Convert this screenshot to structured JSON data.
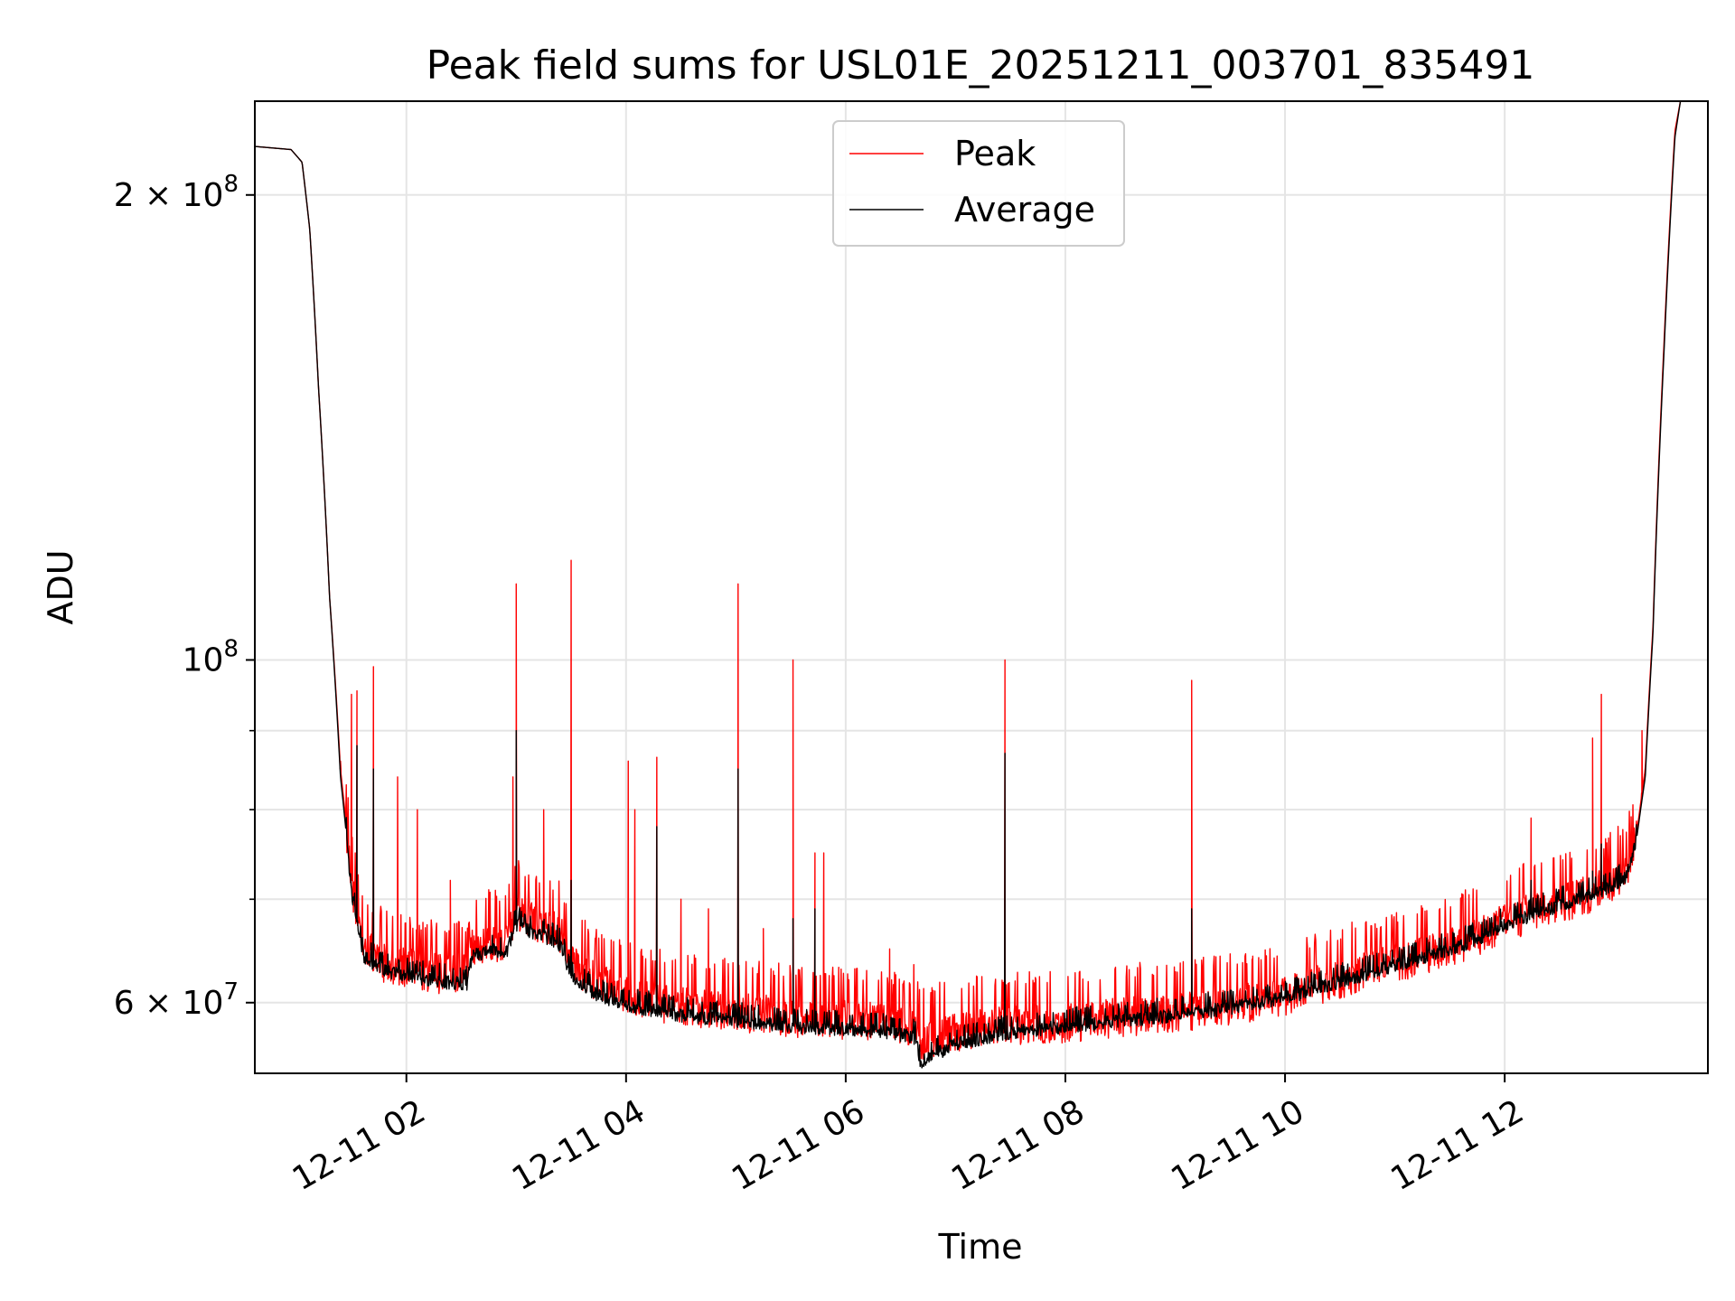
{
  "chart_data": {
    "type": "line",
    "title": "Peak field sums for USL01E_20251211_003701_835491",
    "xlabel": "Time",
    "ylabel": "ADU",
    "yscale": "log",
    "grid": true,
    "legend_position": "top-center",
    "xlim_hours": [
      0.62,
      13.85
    ],
    "ylim": [
      54000000,
      230000000
    ],
    "x_ticks": [
      {
        "hour": 2,
        "label": "12-11 02"
      },
      {
        "hour": 4,
        "label": "12-11 04"
      },
      {
        "hour": 6,
        "label": "12-11 06"
      },
      {
        "hour": 8,
        "label": "12-11 08"
      },
      {
        "hour": 10,
        "label": "12-11 10"
      },
      {
        "hour": 12,
        "label": "12-11 12"
      }
    ],
    "y_ticks": [
      {
        "value": 60000000,
        "base": "6 × 10",
        "exp": "7"
      },
      {
        "value": 100000000,
        "base": "10",
        "exp": "8"
      },
      {
        "value": 200000000,
        "base": "2 × 10",
        "exp": "8"
      }
    ],
    "y_minor_ticks": [
      70000000,
      80000000,
      90000000
    ],
    "series": [
      {
        "name": "Peak",
        "color": "#ff0000",
        "baseline": [
          [
            0.62,
            215000000
          ],
          [
            0.95,
            214000000
          ],
          [
            1.05,
            210000000
          ],
          [
            1.12,
            190000000
          ],
          [
            1.2,
            150000000
          ],
          [
            1.3,
            110000000
          ],
          [
            1.4,
            85000000
          ],
          [
            1.5,
            72000000
          ],
          [
            1.6,
            66000000
          ],
          [
            1.8,
            64000000
          ],
          [
            2.0,
            63500000
          ],
          [
            2.3,
            63000000
          ],
          [
            2.55,
            63000000
          ],
          [
            2.6,
            65500000
          ],
          [
            2.8,
            66000000
          ],
          [
            2.9,
            65500000
          ],
          [
            3.0,
            69000000
          ],
          [
            3.2,
            68000000
          ],
          [
            3.4,
            67000000
          ],
          [
            3.5,
            64000000
          ],
          [
            3.7,
            62500000
          ],
          [
            4.0,
            61000000
          ],
          [
            4.5,
            60000000
          ],
          [
            5.0,
            59500000
          ],
          [
            5.5,
            59000000
          ],
          [
            6.0,
            58800000
          ],
          [
            6.4,
            58500000
          ],
          [
            6.65,
            58300000
          ],
          [
            6.67,
            57000000
          ],
          [
            7.0,
            57800000
          ],
          [
            7.5,
            58300000
          ],
          [
            8.0,
            58500000
          ],
          [
            8.5,
            59000000
          ],
          [
            9.0,
            59500000
          ],
          [
            9.5,
            60000000
          ],
          [
            10.0,
            61000000
          ],
          [
            10.5,
            62500000
          ],
          [
            11.0,
            64000000
          ],
          [
            11.5,
            65500000
          ],
          [
            11.85,
            67000000
          ],
          [
            12.0,
            68000000
          ],
          [
            12.5,
            70000000
          ],
          [
            12.9,
            71500000
          ],
          [
            13.1,
            73000000
          ],
          [
            13.2,
            77000000
          ],
          [
            13.28,
            85000000
          ],
          [
            13.35,
            105000000
          ],
          [
            13.45,
            160000000
          ],
          [
            13.55,
            220000000
          ],
          [
            13.6,
            230000000
          ]
        ],
        "spikes": [
          [
            1.5,
            95000000
          ],
          [
            1.55,
            95500000
          ],
          [
            1.7,
            99000000
          ],
          [
            1.4,
            86000000
          ],
          [
            1.92,
            84000000
          ],
          [
            2.1,
            80000000
          ],
          [
            2.4,
            72000000
          ],
          [
            2.75,
            71000000
          ],
          [
            2.97,
            84000000
          ],
          [
            3.0,
            112000000
          ],
          [
            3.25,
            80000000
          ],
          [
            3.5,
            116000000
          ],
          [
            4.02,
            86000000
          ],
          [
            4.08,
            80000000
          ],
          [
            4.28,
            86500000
          ],
          [
            4.5,
            70000000
          ],
          [
            4.75,
            69000000
          ],
          [
            5.02,
            112000000
          ],
          [
            5.25,
            67000000
          ],
          [
            5.52,
            100000000
          ],
          [
            5.72,
            75000000
          ],
          [
            5.8,
            75000000
          ],
          [
            6.4,
            65000000
          ],
          [
            6.62,
            63500000
          ],
          [
            7.45,
            100000000
          ],
          [
            9.15,
            97000000
          ],
          [
            9.7,
            64000000
          ],
          [
            11.6,
            67000000
          ],
          [
            12.24,
            79000000
          ],
          [
            12.45,
            73000000
          ],
          [
            12.8,
            89000000
          ],
          [
            12.88,
            95000000
          ],
          [
            13.25,
            90000000
          ]
        ]
      },
      {
        "name": "Average",
        "color": "#000000",
        "baseline": [
          [
            0.62,
            215000000
          ],
          [
            0.95,
            214000000
          ],
          [
            1.05,
            210000000
          ],
          [
            1.12,
            190000000
          ],
          [
            1.2,
            150000000
          ],
          [
            1.3,
            110000000
          ],
          [
            1.4,
            84000000
          ],
          [
            1.5,
            71000000
          ],
          [
            1.6,
            64500000
          ],
          [
            1.8,
            63000000
          ],
          [
            2.0,
            62500000
          ],
          [
            2.3,
            62000000
          ],
          [
            2.55,
            61800000
          ],
          [
            2.6,
            64500000
          ],
          [
            2.8,
            65000000
          ],
          [
            2.9,
            64500000
          ],
          [
            3.0,
            67500000
          ],
          [
            3.2,
            66500000
          ],
          [
            3.4,
            65500000
          ],
          [
            3.5,
            62500000
          ],
          [
            3.7,
            61000000
          ],
          [
            4.0,
            59800000
          ],
          [
            4.5,
            59000000
          ],
          [
            5.0,
            58500000
          ],
          [
            5.5,
            58000000
          ],
          [
            6.0,
            57800000
          ],
          [
            6.4,
            57500000
          ],
          [
            6.65,
            57000000
          ],
          [
            6.67,
            55000000
          ],
          [
            7.0,
            56500000
          ],
          [
            7.5,
            57500000
          ],
          [
            8.0,
            58000000
          ],
          [
            8.5,
            58500000
          ],
          [
            9.0,
            59000000
          ],
          [
            9.5,
            59600000
          ],
          [
            10.0,
            60500000
          ],
          [
            10.5,
            62000000
          ],
          [
            11.0,
            63500000
          ],
          [
            11.5,
            65000000
          ],
          [
            11.85,
            66500000
          ],
          [
            12.0,
            67500000
          ],
          [
            12.5,
            69500000
          ],
          [
            12.9,
            71000000
          ],
          [
            13.1,
            72500000
          ],
          [
            13.2,
            76500000
          ],
          [
            13.28,
            84000000
          ],
          [
            13.35,
            104000000
          ],
          [
            13.45,
            158000000
          ],
          [
            13.55,
            218000000
          ],
          [
            13.6,
            230000000
          ]
        ],
        "spikes": [
          [
            1.55,
            88000000
          ],
          [
            1.7,
            85000000
          ],
          [
            3.0,
            90000000
          ],
          [
            3.5,
            72000000
          ],
          [
            4.28,
            78000000
          ],
          [
            5.02,
            85000000
          ],
          [
            5.52,
            68000000
          ],
          [
            5.72,
            69000000
          ],
          [
            7.45,
            87000000
          ],
          [
            9.15,
            69000000
          ],
          [
            12.24,
            72000000
          ],
          [
            12.8,
            73000000
          ],
          [
            12.88,
            76000000
          ]
        ]
      }
    ]
  }
}
